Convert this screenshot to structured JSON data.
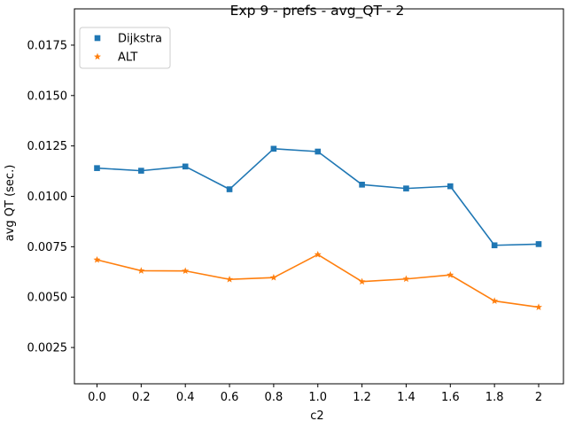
{
  "chart_data": {
    "type": "line",
    "title": "Exp 9 - prefs - avg_QT - 2",
    "xlabel": "c2",
    "ylabel": "avg QT (sec.)",
    "categories": [
      "0.0",
      "0.2",
      "0.4",
      "0.6",
      "0.8",
      "1.0",
      "1.2",
      "1.4",
      "1.6",
      "1.8",
      "2"
    ],
    "ylim": [
      0.0007,
      0.0193
    ],
    "yticks": [
      0.0025,
      0.005,
      0.0075,
      0.01,
      0.0125,
      0.015,
      0.0175
    ],
    "ytick_labels": [
      "0.0025",
      "0.0050",
      "0.0075",
      "0.0100",
      "0.0125",
      "0.0150",
      "0.0175"
    ],
    "grid": false,
    "legend_position": "top-left",
    "series": [
      {
        "name": "Dijkstra",
        "marker": "square",
        "color": "#1f77b4",
        "values": [
          0.0114,
          0.01127,
          0.01148,
          0.01035,
          0.01236,
          0.01222,
          0.01058,
          0.01039,
          0.0105,
          0.00757,
          0.00763
        ]
      },
      {
        "name": "ALT",
        "marker": "star",
        "color": "#ff7f0e",
        "values": [
          0.00685,
          0.00631,
          0.0063,
          0.00588,
          0.00597,
          0.00711,
          0.00577,
          0.0059,
          0.0061,
          0.00481,
          0.0045
        ]
      }
    ]
  }
}
